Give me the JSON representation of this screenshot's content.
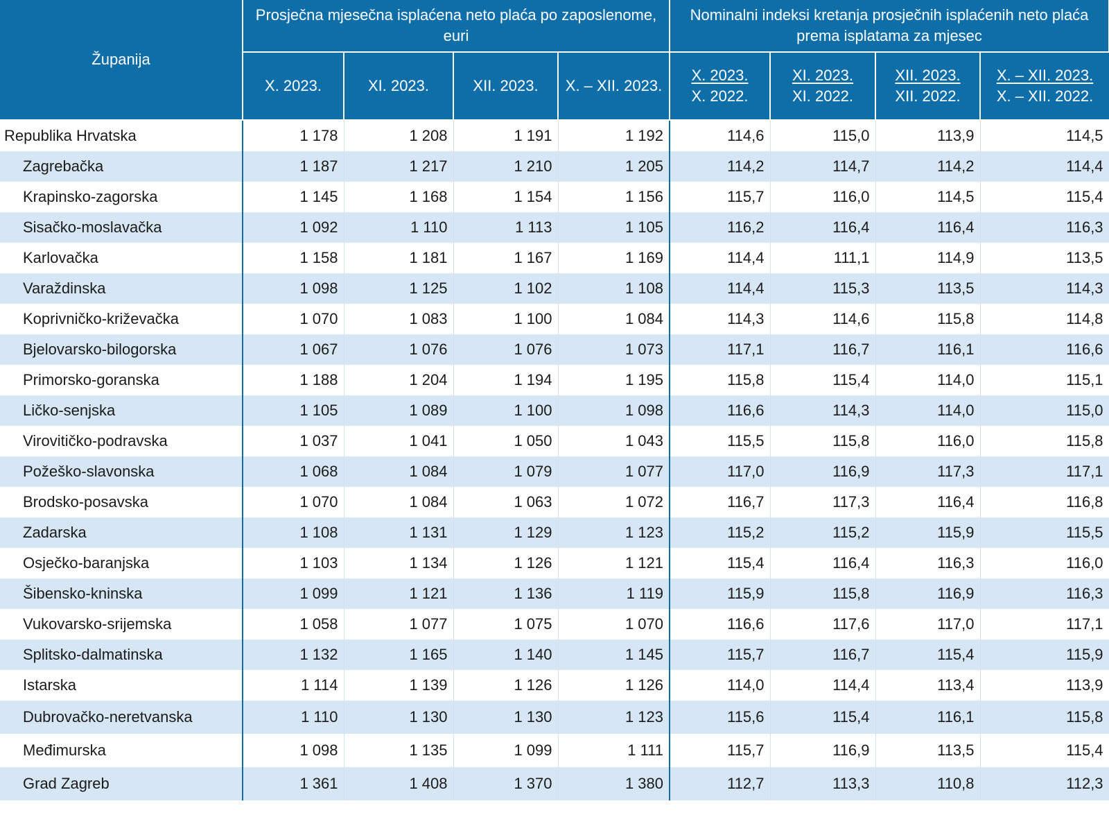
{
  "header": {
    "county": "Županija",
    "group_salary": "Prosječna mjesečna isplaćena neto plaća po zaposlenome, euri",
    "group_index": "Nominalni indeksi kretanja prosječnih isplaćenih neto plaća prema isplatama za mjesec",
    "salary_cols": [
      "X. 2023.",
      "XI. 2023.",
      "XII. 2023.",
      "X. – XII. 2023."
    ],
    "index_cols": [
      {
        "top": "X. 2023.",
        "bottom": "X. 2022."
      },
      {
        "top": "XI. 2023.",
        "bottom": "XI. 2022."
      },
      {
        "top": "XII. 2023.",
        "bottom": "XII. 2022."
      },
      {
        "top": "X. – XII. 2023.",
        "bottom": "X. – XII. 2022."
      }
    ]
  },
  "rows": [
    {
      "name": "Republika Hrvatska",
      "v": [
        "1 178",
        "1 208",
        "1 191",
        "1 192",
        "114,6",
        "115,0",
        "113,9",
        "114,5"
      ]
    },
    {
      "name": "Zagrebačka",
      "v": [
        "1 187",
        "1 217",
        "1 210",
        "1 205",
        "114,2",
        "114,7",
        "114,2",
        "114,4"
      ]
    },
    {
      "name": "Krapinsko-zagorska",
      "v": [
        "1 145",
        "1 168",
        "1 154",
        "1 156",
        "115,7",
        "116,0",
        "114,5",
        "115,4"
      ]
    },
    {
      "name": "Sisačko-moslavačka",
      "v": [
        "1 092",
        "1 110",
        "1 113",
        "1 105",
        "116,2",
        "116,4",
        "116,4",
        "116,3"
      ]
    },
    {
      "name": "Karlovačka",
      "v": [
        "1 158",
        "1 181",
        "1 167",
        "1 169",
        "114,4",
        "111,1",
        "114,9",
        "113,5"
      ]
    },
    {
      "name": "Varaždinska",
      "v": [
        "1 098",
        "1 125",
        "1 102",
        "1 108",
        "114,4",
        "115,3",
        "113,5",
        "114,3"
      ]
    },
    {
      "name": "Koprivničko-križevačka",
      "v": [
        "1 070",
        "1 083",
        "1 100",
        "1 084",
        "114,3",
        "114,6",
        "115,8",
        "114,8"
      ]
    },
    {
      "name": "Bjelovarsko-bilogorska",
      "v": [
        "1 067",
        "1 076",
        "1 076",
        "1 073",
        "117,1",
        "116,7",
        "116,1",
        "116,6"
      ]
    },
    {
      "name": "Primorsko-goranska",
      "v": [
        "1 188",
        "1 204",
        "1 194",
        "1 195",
        "115,8",
        "115,4",
        "114,0",
        "115,1"
      ]
    },
    {
      "name": "Ličko-senjska",
      "v": [
        "1 105",
        "1 089",
        "1 100",
        "1 098",
        "116,6",
        "114,3",
        "114,0",
        "115,0"
      ]
    },
    {
      "name": "Virovitičko-podravska",
      "v": [
        "1 037",
        "1 041",
        "1 050",
        "1 043",
        "115,5",
        "115,8",
        "116,0",
        "115,8"
      ]
    },
    {
      "name": "Požeško-slavonska",
      "v": [
        "1 068",
        "1 084",
        "1 079",
        "1 077",
        "117,0",
        "116,9",
        "117,3",
        "117,1"
      ]
    },
    {
      "name": "Brodsko-posavska",
      "v": [
        "1 070",
        "1 084",
        "1 063",
        "1 072",
        "116,7",
        "117,3",
        "116,4",
        "116,8"
      ]
    },
    {
      "name": "Zadarska",
      "v": [
        "1 108",
        "1 131",
        "1 129",
        "1 123",
        "115,2",
        "115,2",
        "115,9",
        "115,5"
      ]
    },
    {
      "name": "Osječko-baranjska",
      "v": [
        "1 103",
        "1 134",
        "1 126",
        "1 121",
        "115,4",
        "116,4",
        "116,3",
        "116,0"
      ]
    },
    {
      "name": "Šibensko-kninska",
      "v": [
        "1 099",
        "1 121",
        "1 136",
        "1 119",
        "115,9",
        "115,8",
        "116,9",
        "116,3"
      ]
    },
    {
      "name": "Vukovarsko-srijemska",
      "v": [
        "1 058",
        "1 077",
        "1 075",
        "1 070",
        "116,6",
        "117,6",
        "117,0",
        "117,1"
      ]
    },
    {
      "name": "Splitsko-dalmatinska",
      "v": [
        "1 132",
        "1 165",
        "1 140",
        "1 145",
        "115,7",
        "116,7",
        "115,4",
        "115,9"
      ]
    },
    {
      "name": "Istarska",
      "v": [
        "1 114",
        "1 139",
        "1 126",
        "1 126",
        "114,0",
        "114,4",
        "113,4",
        "113,9"
      ]
    },
    {
      "name": "Dubrovačko-neretvanska",
      "v": [
        "1 110",
        "1 130",
        "1 130",
        "1 123",
        "115,6",
        "115,4",
        "116,1",
        "115,8"
      ]
    },
    {
      "name": "Međimurska",
      "v": [
        "1 098",
        "1 135",
        "1 099",
        "1 111",
        "115,7",
        "116,9",
        "113,5",
        "115,4"
      ]
    },
    {
      "name": "Grad Zagreb",
      "v": [
        "1 361",
        "1 408",
        "1 370",
        "1 380",
        "112,7",
        "113,3",
        "110,8",
        "112,3"
      ]
    }
  ]
}
